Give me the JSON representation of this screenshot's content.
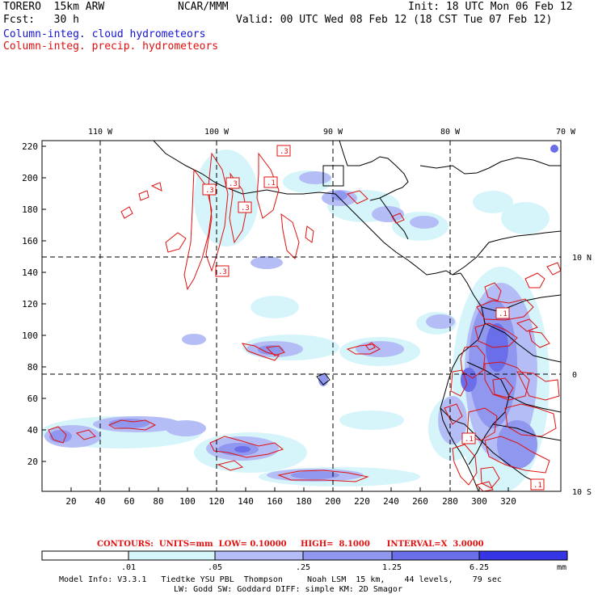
{
  "header": {
    "model": "TORERO  15km ARW",
    "center": "NCAR/MMM",
    "init": "Init: 18 UTC Mon 06 Feb 12",
    "fcst": "Fcst:   30 h",
    "valid": "Valid: 00 UTC Wed 08 Feb 12 (18 CST Tue 07 Feb 12)",
    "field1": "Column-integ. cloud hydrometeors",
    "field2": "Column-integ. precip. hydrometeors"
  },
  "map": {
    "top_lon_labels": [
      "110 W",
      "100 W",
      "90 W",
      "80 W",
      "70 W"
    ],
    "left_ticks": [
      "220",
      "200",
      "180",
      "160",
      "140",
      "120",
      "100",
      "80",
      "60",
      "40",
      "20"
    ],
    "bottom_ticks": [
      "20",
      "40",
      "60",
      "80",
      "100",
      "120",
      "140",
      "160",
      "180",
      "200",
      "220",
      "240",
      "260",
      "280",
      "300",
      "320"
    ],
    "right_lat_labels": [
      "10 N",
      "0",
      "10 S"
    ],
    "contour_labels": [
      ".3",
      ".3",
      ".3",
      ".3",
      ".1",
      ".3",
      ".1",
      ".1",
      ".1"
    ]
  },
  "contours_info": {
    "text": "CONTOURS:  UNITS=mm  LOW= 0.10000     HIGH=  8.1000      INTERVAL=X  3.0000"
  },
  "colorbar": {
    "labels": [
      ".01",
      ".05",
      ".25",
      "1.25",
      "6.25"
    ],
    "unit": "mm",
    "colors": [
      "#ffffff",
      "#d6f5fa",
      "#b4bdf5",
      "#8f97ee",
      "#6a6ee8",
      "#3535e6"
    ]
  },
  "footer": {
    "line1": "Model Info: V3.3.1   Tiedtke YSU PBL  Thompson     Noah LSM  15 km,    44 levels,    79 sec",
    "line2": "LW: Godd SW: Goddard DIFF: simple KM: 2D Smagor"
  }
}
